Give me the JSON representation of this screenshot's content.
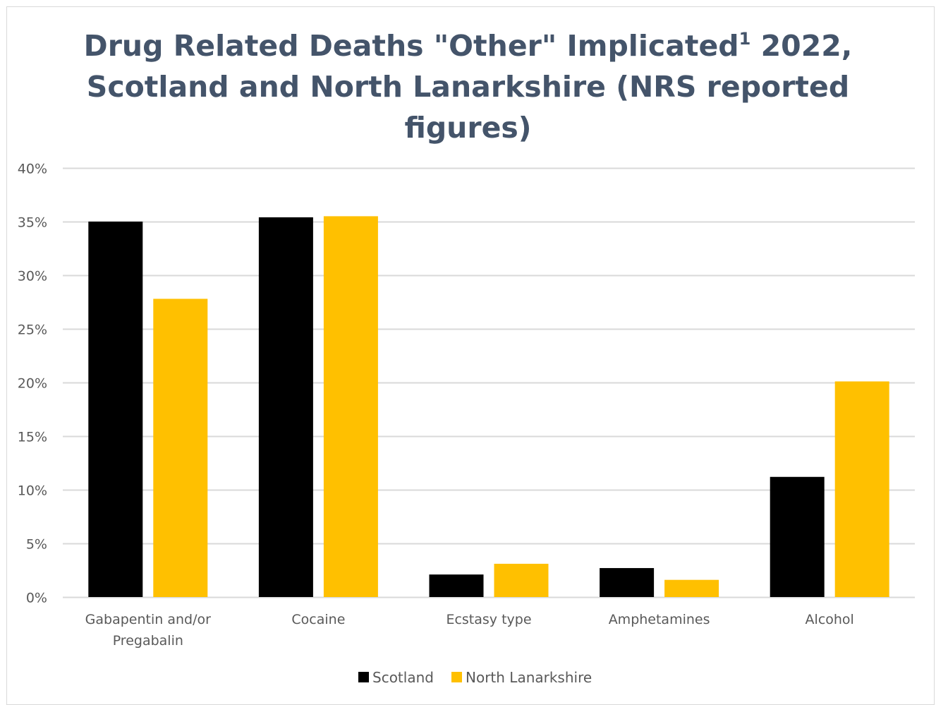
{
  "chart_data": {
    "type": "bar",
    "title": {
      "line1_pre": "Drug Related Deaths \"Other\" Implicated",
      "line1_sup": "1",
      "line1_post": " 2022,",
      "line2": "Scotland and North Lanarkshire (NRS reported",
      "line3": "figures)"
    },
    "xlabel": "",
    "ylabel": "",
    "categories": [
      [
        "Gabapentin and/or",
        "Pregabalin"
      ],
      [
        "Cocaine"
      ],
      [
        "Ecstasy type"
      ],
      [
        "Amphetamines"
      ],
      [
        "Alcohol"
      ]
    ],
    "series": [
      {
        "name": "Scotland",
        "color": "#000000",
        "values": [
          0.35,
          0.354,
          0.021,
          0.027,
          0.112
        ]
      },
      {
        "name": "North Lanarkshire",
        "color": "#ffc000",
        "values": [
          0.278,
          0.355,
          0.031,
          0.016,
          0.201
        ]
      }
    ],
    "ylim": [
      0,
      0.4
    ],
    "yticks": [
      {
        "value": 0.0,
        "label": "0%"
      },
      {
        "value": 0.05,
        "label": "5%"
      },
      {
        "value": 0.1,
        "label": "10%"
      },
      {
        "value": 0.15,
        "label": "15%"
      },
      {
        "value": 0.2,
        "label": "20%"
      },
      {
        "value": 0.25,
        "label": "25%"
      },
      {
        "value": 0.3,
        "label": "30%"
      },
      {
        "value": 0.35,
        "label": "35%"
      },
      {
        "value": 0.4,
        "label": "40%"
      }
    ],
    "grid": true,
    "legend_position": "bottom",
    "colors": {
      "title": "#44546a",
      "gridline": "#d9d9d9",
      "axis_text": "#595959"
    }
  }
}
